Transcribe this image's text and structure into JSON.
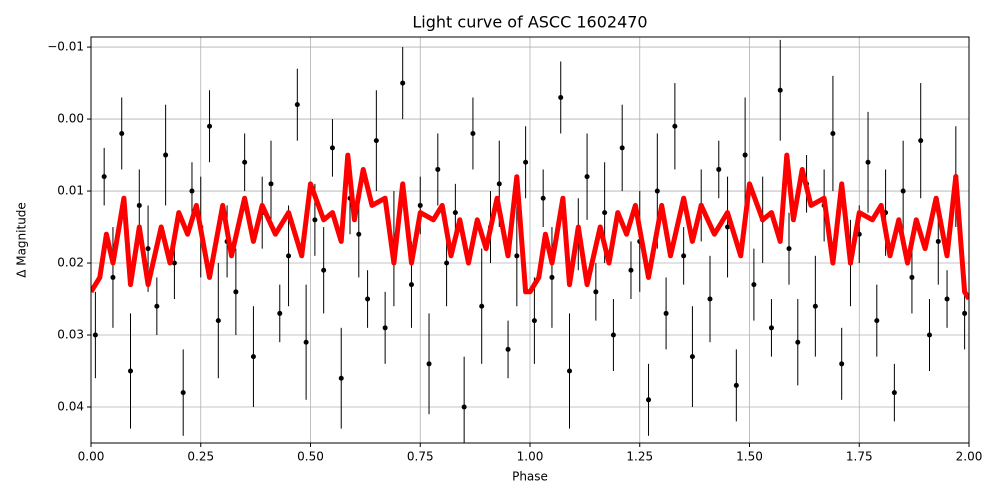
{
  "chart_data": {
    "type": "errorbar_scatter_fit",
    "title": "Light curve of ASCC 1602470",
    "x_label": "Phase",
    "y_label": "Δ Magnitude",
    "xlim": [
      0,
      2
    ],
    "ylim": [
      -0.0114,
      0.045
    ],
    "y_inverted": true,
    "grid": true,
    "xticks": [
      {
        "value": 0,
        "label": "0.00"
      },
      0.25,
      {
        "value": 0.5,
        "label": "0.50"
      },
      0.75,
      {
        "value": 1,
        "label": "1.00"
      },
      1.25,
      {
        "value": 1.5,
        "label": "1.50"
      },
      1.75,
      {
        "value": 2,
        "label": "2.00"
      }
    ],
    "yticks": [
      {
        "value": -0.01,
        "label": "−0.01"
      },
      {
        "value": 0,
        "label": "0.00"
      },
      0.01,
      0.02,
      0.03,
      0.04
    ],
    "points": {
      "color": "#000000",
      "x": [
        0.01,
        0.03,
        0.05,
        0.07,
        0.09,
        0.11,
        0.13,
        0.15,
        0.17,
        0.19,
        0.21,
        0.23,
        0.25,
        0.27,
        0.29,
        0.31,
        0.33,
        0.35,
        0.37,
        0.39,
        0.41,
        0.43,
        0.45,
        0.47,
        0.49,
        0.51,
        0.53,
        0.55,
        0.57,
        0.59,
        0.61,
        0.63,
        0.65,
        0.67,
        0.69,
        0.71,
        0.73,
        0.75,
        0.77,
        0.79,
        0.81,
        0.83,
        0.85,
        0.87,
        0.89,
        0.91,
        0.93,
        0.95,
        0.97,
        0.99,
        1.01,
        1.03,
        1.05,
        1.07,
        1.09,
        1.11,
        1.13,
        1.15,
        1.17,
        1.19,
        1.21,
        1.23,
        1.25,
        1.27,
        1.29,
        1.31,
        1.33,
        1.35,
        1.37,
        1.39,
        1.41,
        1.43,
        1.45,
        1.47,
        1.49,
        1.51,
        1.53,
        1.55,
        1.57,
        1.59,
        1.61,
        1.63,
        1.65,
        1.67,
        1.69,
        1.71,
        1.73,
        1.75,
        1.77,
        1.79,
        1.81,
        1.83,
        1.85,
        1.87,
        1.89,
        1.91,
        1.93,
        1.95,
        1.97,
        1.99
      ],
      "y": [
        0.03,
        0.008,
        0.022,
        0.002,
        0.035,
        0.012,
        0.018,
        0.026,
        0.005,
        0.02,
        0.038,
        0.01,
        0.015,
        0.001,
        0.028,
        0.017,
        0.024,
        0.006,
        0.033,
        0.013,
        0.009,
        0.027,
        0.019,
        -0.002,
        0.031,
        0.014,
        0.021,
        0.004,
        0.036,
        0.011,
        0.016,
        0.025,
        0.003,
        0.029,
        0.018,
        -0.005,
        0.023,
        0.012,
        0.034,
        0.007,
        0.02,
        0.013,
        0.04,
        0.002,
        0.026,
        0.015,
        0.009,
        0.032,
        0.019,
        0.006,
        0.028,
        0.011,
        0.022,
        -0.003,
        0.035,
        0.016,
        0.008,
        0.024,
        0.013,
        0.03,
        0.004,
        0.021,
        0.017,
        0.039,
        0.01,
        0.027,
        0.001,
        0.019,
        0.033,
        0.012,
        0.025,
        0.007,
        0.015,
        0.037,
        0.005,
        0.023,
        0.014,
        0.029,
        -0.004,
        0.018,
        0.031,
        0.009,
        0.026,
        0.012,
        0.002,
        0.034,
        0.02,
        0.016,
        0.006,
        0.028,
        0.013,
        0.038,
        0.01,
        0.022,
        0.003,
        0.03,
        0.017,
        0.025,
        0.008,
        0.027
      ],
      "err": [
        0.006,
        0.004,
        0.007,
        0.005,
        0.008,
        0.005,
        0.006,
        0.004,
        0.007,
        0.005,
        0.006,
        0.004,
        0.007,
        0.005,
        0.008,
        0.005,
        0.006,
        0.004,
        0.007,
        0.005,
        0.006,
        0.004,
        0.007,
        0.005,
        0.008,
        0.005,
        0.006,
        0.004,
        0.007,
        0.005,
        0.006,
        0.004,
        0.007,
        0.005,
        0.008,
        0.005,
        0.006,
        0.004,
        0.007,
        0.005,
        0.006,
        0.004,
        0.007,
        0.005,
        0.008,
        0.005,
        0.006,
        0.004,
        0.007,
        0.005,
        0.006,
        0.004,
        0.007,
        0.005,
        0.008,
        0.005,
        0.006,
        0.004,
        0.007,
        0.005,
        0.006,
        0.004,
        0.007,
        0.005,
        0.008,
        0.005,
        0.006,
        0.004,
        0.007,
        0.005,
        0.006,
        0.004,
        0.007,
        0.005,
        0.008,
        0.005,
        0.006,
        0.004,
        0.007,
        0.005,
        0.006,
        0.004,
        0.007,
        0.005,
        0.008,
        0.005,
        0.006,
        0.004,
        0.007,
        0.005,
        0.006,
        0.004,
        0.007,
        0.005,
        0.008,
        0.005,
        0.006,
        0.004,
        0.007,
        0.005
      ]
    },
    "fit": {
      "color": "#ff0000",
      "x": [
        0,
        0.02,
        0.035,
        0.05,
        0.075,
        0.09,
        0.11,
        0.13,
        0.16,
        0.18,
        0.2,
        0.22,
        0.24,
        0.27,
        0.3,
        0.32,
        0.35,
        0.37,
        0.39,
        0.42,
        0.45,
        0.48,
        0.5,
        0.53,
        0.55,
        0.57,
        0.585,
        0.6,
        0.62,
        0.64,
        0.67,
        0.69,
        0.71,
        0.73,
        0.75,
        0.78,
        0.8,
        0.82,
        0.84,
        0.86,
        0.88,
        0.9,
        0.925,
        0.95,
        0.97,
        0.99,
        1,
        1.02,
        1.035,
        1.05,
        1.075,
        1.09,
        1.11,
        1.13,
        1.16,
        1.18,
        1.2,
        1.22,
        1.24,
        1.27,
        1.3,
        1.32,
        1.35,
        1.37,
        1.39,
        1.42,
        1.45,
        1.48,
        1.5,
        1.53,
        1.55,
        1.57,
        1.585,
        1.6,
        1.62,
        1.64,
        1.67,
        1.69,
        1.71,
        1.73,
        1.75,
        1.78,
        1.8,
        1.82,
        1.84,
        1.86,
        1.88,
        1.9,
        1.925,
        1.95,
        1.97,
        1.99,
        2
      ],
      "y": [
        0.024,
        0.022,
        0.016,
        0.02,
        0.011,
        0.023,
        0.015,
        0.023,
        0.015,
        0.02,
        0.013,
        0.016,
        0.012,
        0.022,
        0.012,
        0.019,
        0.011,
        0.017,
        0.012,
        0.016,
        0.013,
        0.019,
        0.009,
        0.014,
        0.013,
        0.017,
        0.005,
        0.014,
        0.007,
        0.012,
        0.011,
        0.02,
        0.009,
        0.02,
        0.013,
        0.014,
        0.012,
        0.019,
        0.014,
        0.02,
        0.014,
        0.018,
        0.011,
        0.019,
        0.008,
        0.024,
        0.024,
        0.022,
        0.016,
        0.02,
        0.011,
        0.023,
        0.015,
        0.023,
        0.015,
        0.02,
        0.013,
        0.016,
        0.012,
        0.022,
        0.012,
        0.019,
        0.011,
        0.017,
        0.012,
        0.016,
        0.013,
        0.019,
        0.009,
        0.014,
        0.013,
        0.017,
        0.005,
        0.014,
        0.007,
        0.012,
        0.011,
        0.02,
        0.009,
        0.02,
        0.013,
        0.014,
        0.012,
        0.019,
        0.014,
        0.02,
        0.014,
        0.018,
        0.011,
        0.019,
        0.008,
        0.024,
        0.025
      ]
    }
  }
}
